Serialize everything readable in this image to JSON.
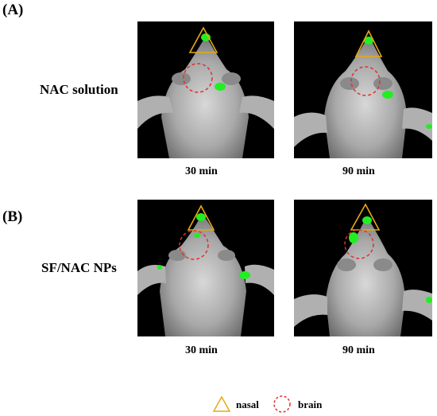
{
  "panels": [
    {
      "label": "(A)",
      "condition": "NAC solution",
      "images": [
        {
          "time": "30 min"
        },
        {
          "time": "90 min"
        }
      ]
    },
    {
      "label": "(B)",
      "condition": "SF/NAC NPs",
      "images": [
        {
          "time": "30 min"
        },
        {
          "time": "90 min"
        }
      ]
    }
  ],
  "legend": {
    "nasal_label": "nasal",
    "brain_label": "brain",
    "nasal_color": "#e6a817",
    "brain_color": "#e03030"
  },
  "colors": {
    "fluorescence": "#22ee22",
    "background": "#000000"
  }
}
